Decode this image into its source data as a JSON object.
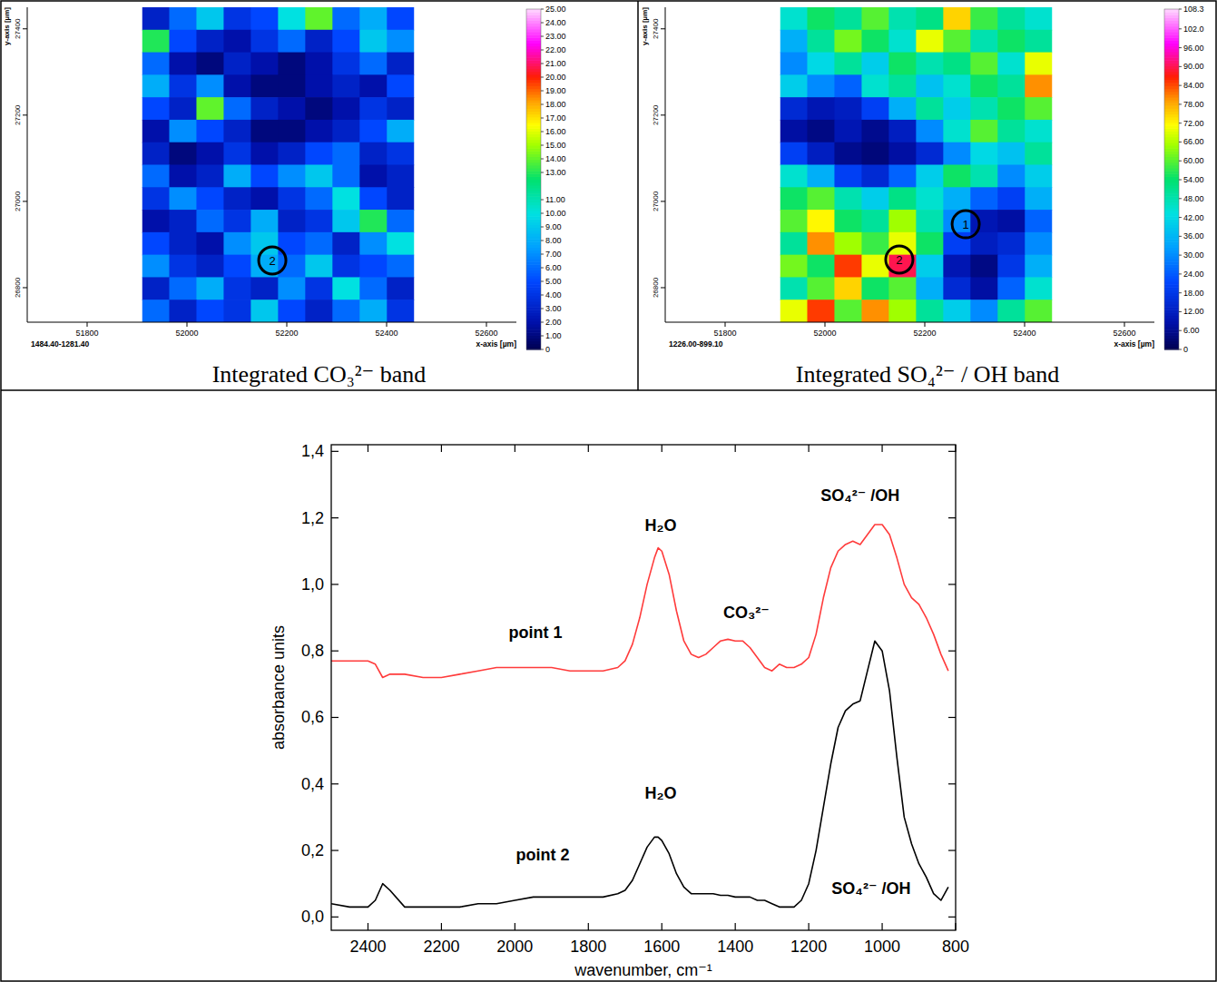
{
  "chart_data": [
    {
      "type": "heatmap",
      "title": "Integrated CO₃²⁻ band",
      "band_label": "1484.40-1281.40",
      "xlabel": "x-axis [µm]",
      "ylabel": "y-axis [µm]",
      "xlim": [
        51680,
        52660
      ],
      "ylim": [
        26720,
        27450
      ],
      "xticks": [
        51800,
        52000,
        52200,
        52400,
        52600
      ],
      "yticks": [
        26800,
        27000,
        27200,
        27400
      ],
      "x_range": [
        51910,
        52455
      ],
      "y_range": [
        26720,
        27450
      ],
      "cells": [
        [
          3,
          6,
          9,
          4,
          5,
          10,
          14,
          6,
          8,
          5
        ],
        [
          13,
          5,
          3,
          2,
          4,
          6,
          3,
          5,
          9,
          7
        ],
        [
          6,
          2,
          1,
          3,
          2,
          1,
          2,
          4,
          6,
          3
        ],
        [
          8,
          4,
          7,
          2,
          1,
          1,
          2,
          3,
          2,
          5
        ],
        [
          5,
          3,
          14,
          6,
          3,
          2,
          1,
          2,
          4,
          3
        ],
        [
          2,
          7,
          5,
          3,
          1,
          1,
          2,
          3,
          5,
          8
        ],
        [
          3,
          1,
          2,
          4,
          2,
          3,
          5,
          6,
          3,
          4
        ],
        [
          6,
          2,
          3,
          8,
          5,
          7,
          9,
          6,
          2,
          3
        ],
        [
          4,
          7,
          5,
          3,
          2,
          4,
          6,
          10,
          5,
          3
        ],
        [
          2,
          3,
          6,
          4,
          8,
          3,
          4,
          9,
          13,
          6
        ],
        [
          5,
          3,
          2,
          7,
          9,
          5,
          6,
          3,
          7,
          10
        ],
        [
          7,
          4,
          3,
          5,
          8,
          6,
          9,
          4,
          5,
          6
        ],
        [
          3,
          6,
          8,
          4,
          3,
          7,
          4,
          10,
          6,
          3
        ],
        [
          6,
          3,
          5,
          4,
          9,
          5,
          3,
          6,
          8,
          4
        ]
      ],
      "colorbar": {
        "range": [
          0,
          25
        ],
        "ticks": [
          {
            "value": 25,
            "label": "25.00"
          },
          {
            "value": 24,
            "label": "24.00"
          },
          {
            "value": 23,
            "label": "23.00"
          },
          {
            "value": 22,
            "label": "22.00"
          },
          {
            "value": 21,
            "label": "21.00"
          },
          {
            "value": 20,
            "label": "20.00"
          },
          {
            "value": 19,
            "label": "19.00"
          },
          {
            "value": 18,
            "label": "18.00"
          },
          {
            "value": 17,
            "label": "17.00"
          },
          {
            "value": 16,
            "label": "16.00"
          },
          {
            "value": 15,
            "label": "15.00"
          },
          {
            "value": 14,
            "label": "14.00"
          },
          {
            "value": 13,
            "label": "13.00"
          },
          {
            "value": 11,
            "label": "11.00"
          },
          {
            "value": 10,
            "label": "10.00"
          },
          {
            "value": 9,
            "label": "9.00"
          },
          {
            "value": 8,
            "label": "8.00"
          },
          {
            "value": 7,
            "label": "7.00"
          },
          {
            "value": 6,
            "label": "6.00"
          },
          {
            "value": 5,
            "label": "5.00"
          },
          {
            "value": 4,
            "label": "4.00"
          },
          {
            "value": 3,
            "label": "3.00"
          },
          {
            "value": 2,
            "label": "2.00"
          },
          {
            "value": 1,
            "label": "1.00"
          },
          0
        ]
      },
      "markers": [
        {
          "label": "2",
          "x": 52171,
          "y": 26863
        }
      ]
    },
    {
      "type": "heatmap",
      "title": "Integrated SO₄²⁻ / OH band",
      "band_label": "1226.00-899.10",
      "xlabel": "x-axis [µm]",
      "ylabel": "y-axis [µm]",
      "xlim": [
        51680,
        52660
      ],
      "ylim": [
        26720,
        27450
      ],
      "xticks": [
        51800,
        52000,
        52200,
        52400,
        52600
      ],
      "yticks": [
        26800,
        27000,
        27200,
        27400
      ],
      "x_range": [
        51910,
        52455
      ],
      "y_range": [
        26720,
        27450
      ],
      "cells": [
        [
          45,
          55,
          50,
          60,
          48,
          52,
          75,
          58,
          50,
          45
        ],
        [
          35,
          50,
          62,
          55,
          45,
          70,
          60,
          48,
          55,
          50
        ],
        [
          30,
          42,
          50,
          40,
          55,
          48,
          52,
          60,
          45,
          70
        ],
        [
          40,
          30,
          25,
          45,
          50,
          38,
          45,
          55,
          50,
          80
        ],
        [
          15,
          10,
          12,
          20,
          35,
          50,
          40,
          48,
          55,
          60
        ],
        [
          8,
          5,
          10,
          6,
          12,
          30,
          45,
          60,
          50,
          45
        ],
        [
          20,
          12,
          6,
          4,
          8,
          15,
          30,
          42,
          38,
          50
        ],
        [
          45,
          35,
          20,
          15,
          25,
          40,
          55,
          48,
          30,
          40
        ],
        [
          55,
          60,
          48,
          40,
          52,
          45,
          35,
          25,
          20,
          35
        ],
        [
          60,
          72,
          55,
          50,
          65,
          48,
          30,
          10,
          8,
          25
        ],
        [
          50,
          80,
          65,
          58,
          70,
          55,
          20,
          12,
          15,
          30
        ],
        [
          62,
          55,
          85,
          70,
          90,
          40,
          10,
          5,
          18,
          35
        ],
        [
          48,
          60,
          75,
          55,
          60,
          35,
          15,
          8,
          25,
          45
        ],
        [
          70,
          85,
          60,
          80,
          65,
          50,
          40,
          30,
          50,
          60
        ]
      ],
      "colorbar": {
        "range": [
          0,
          108.3
        ],
        "ticks": [
          108.3,
          {
            "value": 102,
            "label": "102.0"
          },
          {
            "value": 96,
            "label": "96.00"
          },
          {
            "value": 90,
            "label": "90.00"
          },
          {
            "value": 84,
            "label": "84.00"
          },
          {
            "value": 78,
            "label": "78.00"
          },
          {
            "value": 72,
            "label": "72.00"
          },
          {
            "value": 66,
            "label": "66.00"
          },
          {
            "value": 60,
            "label": "60.00"
          },
          {
            "value": 54,
            "label": "54.00"
          },
          {
            "value": 48,
            "label": "48.00"
          },
          {
            "value": 42,
            "label": "42.00"
          },
          {
            "value": 36,
            "label": "36.00"
          },
          {
            "value": 30,
            "label": "30.00"
          },
          {
            "value": 24,
            "label": "24.00"
          },
          {
            "value": 18,
            "label": "18.00"
          },
          {
            "value": 12,
            "label": "12.00"
          },
          {
            "value": 6,
            "label": "6.00"
          },
          0
        ]
      },
      "markers": [
        {
          "label": "1",
          "x": 52282,
          "y": 26947
        },
        {
          "label": "2",
          "x": 52149,
          "y": 26865
        }
      ]
    },
    {
      "type": "line",
      "xlabel": "wavenumber, cm⁻¹",
      "ylabel": "absorbance units",
      "x": [
        2500,
        2450,
        2400,
        2380,
        2360,
        2340,
        2300,
        2250,
        2200,
        2150,
        2100,
        2050,
        2000,
        1950,
        1900,
        1850,
        1800,
        1760,
        1720,
        1700,
        1680,
        1660,
        1640,
        1620,
        1610,
        1600,
        1580,
        1560,
        1540,
        1520,
        1500,
        1480,
        1460,
        1440,
        1420,
        1400,
        1380,
        1360,
        1340,
        1320,
        1300,
        1280,
        1260,
        1240,
        1220,
        1200,
        1180,
        1160,
        1140,
        1120,
        1100,
        1080,
        1060,
        1040,
        1020,
        1000,
        980,
        960,
        940,
        920,
        900,
        880,
        860,
        840,
        820
      ],
      "xlim": [
        2500,
        800
      ],
      "ylim": [
        -0.04,
        1.42
      ],
      "xticks": [
        2400,
        2200,
        2000,
        1800,
        1600,
        1400,
        1200,
        1000,
        800
      ],
      "yticks": [
        {
          "value": 0,
          "label": "0,0"
        },
        {
          "value": 0.2,
          "label": "0,2"
        },
        {
          "value": 0.4,
          "label": "0,4"
        },
        {
          "value": 0.6,
          "label": "0,6"
        },
        {
          "value": 0.8,
          "label": "0,8"
        },
        {
          "value": 1.0,
          "label": "1,0"
        },
        {
          "value": 1.2,
          "label": "1,2"
        },
        {
          "value": 1.4,
          "label": "1,4"
        }
      ],
      "grid": false,
      "series": [
        {
          "color": "#ff3b3b",
          "values": [
            0.77,
            0.77,
            0.77,
            0.76,
            0.72,
            0.73,
            0.73,
            0.72,
            0.72,
            0.73,
            0.74,
            0.75,
            0.75,
            0.75,
            0.75,
            0.74,
            0.74,
            0.74,
            0.75,
            0.77,
            0.82,
            0.9,
            1.0,
            1.08,
            1.11,
            1.1,
            1.03,
            0.92,
            0.83,
            0.79,
            0.78,
            0.79,
            0.81,
            0.83,
            0.835,
            0.83,
            0.83,
            0.81,
            0.78,
            0.75,
            0.74,
            0.76,
            0.75,
            0.75,
            0.76,
            0.78,
            0.85,
            0.96,
            1.05,
            1.1,
            1.12,
            1.13,
            1.12,
            1.15,
            1.18,
            1.18,
            1.15,
            1.08,
            1.0,
            0.96,
            0.94,
            0.9,
            0.85,
            0.79,
            0.74
          ]
        },
        {
          "color": "#000000",
          "values": [
            0.04,
            0.03,
            0.03,
            0.05,
            0.1,
            0.08,
            0.03,
            0.03,
            0.03,
            0.03,
            0.04,
            0.04,
            0.05,
            0.06,
            0.06,
            0.06,
            0.06,
            0.06,
            0.07,
            0.08,
            0.11,
            0.16,
            0.21,
            0.24,
            0.24,
            0.23,
            0.19,
            0.13,
            0.09,
            0.07,
            0.07,
            0.07,
            0.07,
            0.065,
            0.065,
            0.06,
            0.06,
            0.06,
            0.05,
            0.05,
            0.04,
            0.03,
            0.03,
            0.03,
            0.05,
            0.1,
            0.2,
            0.33,
            0.46,
            0.57,
            0.62,
            0.64,
            0.65,
            0.74,
            0.83,
            0.8,
            0.68,
            0.48,
            0.3,
            0.22,
            0.16,
            0.12,
            0.07,
            0.05,
            0.09
          ]
        }
      ],
      "annotations": [
        {
          "text": "point 1",
          "x": 1944,
          "y": 0.84
        },
        {
          "text": "H₂O",
          "x": 1603,
          "y": 1.16
        },
        {
          "text": "CO₃²⁻",
          "x": 1370,
          "y": 0.9
        },
        {
          "text": "SO₄²⁻ /OH",
          "x": 1060,
          "y": 1.25
        },
        {
          "text": "point 2",
          "x": 1924,
          "y": 0.17
        },
        {
          "text": "H₂O",
          "x": 1603,
          "y": 0.355
        },
        {
          "text": "SO₄²⁻ /OH",
          "x": 1030,
          "y": 0.068
        }
      ]
    }
  ]
}
